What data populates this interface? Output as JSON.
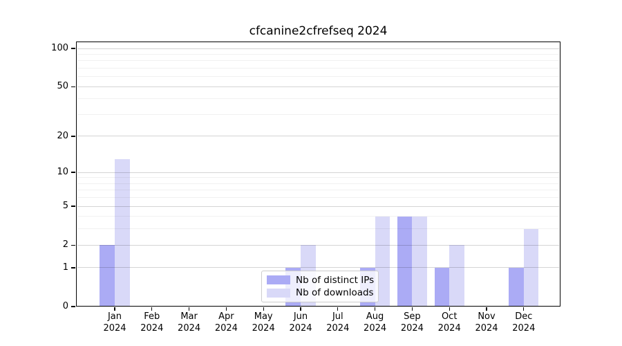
{
  "title": "cfcanine2cfrefseq 2024",
  "chart_data": {
    "type": "bar",
    "title": "cfcanine2cfrefseq 2024",
    "y_scale": "log1p",
    "ylim": [
      0,
      114
    ],
    "grid": "on",
    "legend_position": "lower-center",
    "x_tick_year": "2024",
    "categories": [
      "Jan 2024",
      "Feb 2024",
      "Mar 2024",
      "Apr 2024",
      "May 2024",
      "Jun 2024",
      "Jul 2024",
      "Aug 2024",
      "Sep 2024",
      "Oct 2024",
      "Nov 2024",
      "Dec 2024"
    ],
    "months": [
      "Jan",
      "Feb",
      "Mar",
      "Apr",
      "May",
      "Jun",
      "Jul",
      "Aug",
      "Sep",
      "Oct",
      "Nov",
      "Dec"
    ],
    "y_major_ticks": [
      0,
      1,
      2,
      5,
      10,
      20,
      50,
      100
    ],
    "y_minor_gridlines": [
      3,
      4,
      6,
      7,
      8,
      9,
      30,
      40,
      60,
      70,
      80,
      90
    ],
    "series": [
      {
        "name": "Nb of distinct IPs",
        "color": "#ababf5",
        "values": [
          2,
          0,
          0,
          0,
          0,
          1,
          0,
          1,
          4,
          1,
          0,
          1
        ]
      },
      {
        "name": "Nb of downloads",
        "color": "#d9d9f8",
        "values": [
          13,
          0,
          0,
          0,
          0,
          2,
          0,
          4,
          4,
          2,
          0,
          3
        ]
      }
    ]
  }
}
